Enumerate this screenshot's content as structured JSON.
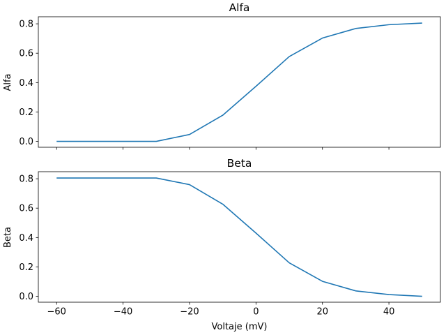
{
  "figure": {
    "background": "#ffffff",
    "line_color": "#1f77b4"
  },
  "chart_data": [
    {
      "type": "line",
      "title": "Alfa",
      "xlabel": "",
      "ylabel": "Alfa",
      "xlim": [
        -65.5,
        55.5
      ],
      "ylim": [
        -0.04,
        0.848
      ],
      "xticks": [
        -60,
        -40,
        -20,
        0,
        20,
        40
      ],
      "xtick_labels": [
        "",
        "",
        "",
        "",
        "",
        ""
      ],
      "yticks": [
        0.0,
        0.2,
        0.4,
        0.6,
        0.8
      ],
      "ytick_labels": [
        "0.0",
        "0.2",
        "0.4",
        "0.6",
        "0.8"
      ],
      "grid": false,
      "series": [
        {
          "color": "#1f77b4",
          "x": [
            -60,
            -50,
            -40,
            -30,
            -20,
            -10,
            0,
            10,
            20,
            30,
            40,
            50
          ],
          "y": [
            0.0,
            0.0,
            0.0,
            0.0,
            0.047,
            0.178,
            0.375,
            0.577,
            0.703,
            0.768,
            0.794,
            0.805
          ]
        }
      ]
    },
    {
      "type": "line",
      "title": "Beta",
      "xlabel": "Voltaje (mV)",
      "ylabel": "Beta",
      "xlim": [
        -65.5,
        55.5
      ],
      "ylim": [
        -0.04,
        0.848
      ],
      "xticks": [
        -60,
        -40,
        -20,
        0,
        20,
        40
      ],
      "xtick_labels": [
        "−60",
        "−40",
        "−20",
        "0",
        "20",
        "40"
      ],
      "yticks": [
        0.0,
        0.2,
        0.4,
        0.6,
        0.8
      ],
      "ytick_labels": [
        "0.0",
        "0.2",
        "0.4",
        "0.6",
        "0.8"
      ],
      "grid": false,
      "series": [
        {
          "color": "#1f77b4",
          "x": [
            -60,
            -50,
            -40,
            -30,
            -20,
            -10,
            0,
            10,
            20,
            30,
            40,
            50
          ],
          "y": [
            0.805,
            0.805,
            0.805,
            0.805,
            0.76,
            0.627,
            0.43,
            0.228,
            0.102,
            0.037,
            0.012,
            0.0
          ]
        }
      ]
    }
  ]
}
